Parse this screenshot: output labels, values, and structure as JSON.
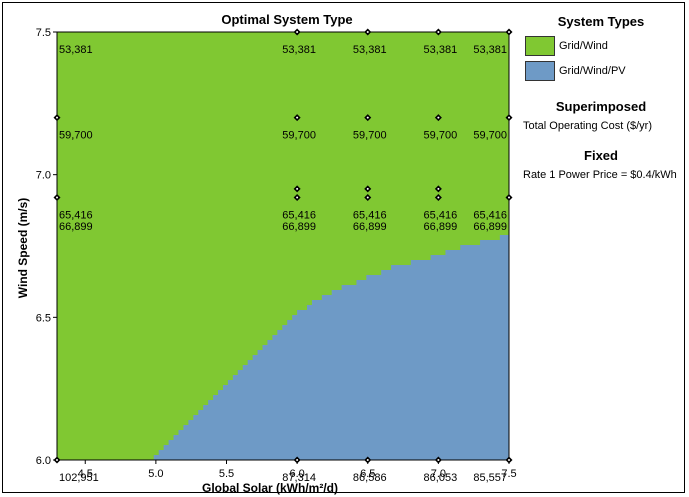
{
  "chart_data": {
    "type": "heatmap",
    "title": "Optimal System Type",
    "xlabel": "Global Solar (kWh/m²/d)",
    "ylabel": "Wind Speed (m/s)",
    "xlim": [
      4.3,
      7.5
    ],
    "ylim": [
      6.0,
      7.5
    ],
    "x_ticks": [
      "4.5",
      "5.0",
      "5.5",
      "6.0",
      "6.5",
      "7.0",
      "7.5"
    ],
    "y_ticks": [
      "6.0",
      "6.5",
      "7.0",
      "7.5"
    ],
    "regions": [
      {
        "name": "Grid/Wind",
        "color": "#80c832"
      },
      {
        "name": "Grid/Wind/PV",
        "color": "#6e9ac6"
      }
    ],
    "boundary": [
      [
        4.95,
        6.0
      ],
      [
        5.2,
        6.12
      ],
      [
        5.45,
        6.25
      ],
      [
        5.7,
        6.37
      ],
      [
        5.95,
        6.5
      ],
      [
        6.2,
        6.58
      ],
      [
        6.45,
        6.63
      ],
      [
        6.7,
        6.68
      ],
      [
        6.95,
        6.71
      ],
      [
        7.2,
        6.75
      ],
      [
        7.5,
        6.79
      ]
    ],
    "markers": [
      [
        6.0,
        7.5
      ],
      [
        6.5,
        7.5
      ],
      [
        7.0,
        7.5
      ],
      [
        7.5,
        7.5
      ],
      [
        4.3,
        7.2
      ],
      [
        6.0,
        7.2
      ],
      [
        6.5,
        7.2
      ],
      [
        7.0,
        7.2
      ],
      [
        7.5,
        7.2
      ],
      [
        6.0,
        6.95
      ],
      [
        6.5,
        6.95
      ],
      [
        7.0,
        6.95
      ],
      [
        4.3,
        6.92
      ],
      [
        6.0,
        6.92
      ],
      [
        6.5,
        6.92
      ],
      [
        7.0,
        6.92
      ],
      [
        7.5,
        6.92
      ],
      [
        4.3,
        6.0
      ],
      [
        6.0,
        6.0
      ],
      [
        6.5,
        6.0
      ],
      [
        7.0,
        6.0
      ],
      [
        7.5,
        6.0
      ]
    ],
    "cost_labels": [
      {
        "x": 4.3,
        "y": 7.5,
        "text": "53,381"
      },
      {
        "x": 6.0,
        "y": 7.5,
        "text": "53,381"
      },
      {
        "x": 6.5,
        "y": 7.5,
        "text": "53,381"
      },
      {
        "x": 7.0,
        "y": 7.5,
        "text": "53,381"
      },
      {
        "x": 7.5,
        "y": 7.5,
        "text": "53,381"
      },
      {
        "x": 4.3,
        "y": 7.2,
        "text": "59,700"
      },
      {
        "x": 6.0,
        "y": 7.2,
        "text": "59,700"
      },
      {
        "x": 6.5,
        "y": 7.2,
        "text": "59,700"
      },
      {
        "x": 7.0,
        "y": 7.2,
        "text": "59,700"
      },
      {
        "x": 7.5,
        "y": 7.2,
        "text": "59,700"
      },
      {
        "x": 4.3,
        "y": 6.92,
        "text": "65,416"
      },
      {
        "x": 6.0,
        "y": 6.92,
        "text": "65,416"
      },
      {
        "x": 6.5,
        "y": 6.92,
        "text": "65,416"
      },
      {
        "x": 7.0,
        "y": 6.92,
        "text": "65,416"
      },
      {
        "x": 7.5,
        "y": 6.92,
        "text": "65,416"
      },
      {
        "x": 4.3,
        "y": 6.88,
        "text": "66,899"
      },
      {
        "x": 6.0,
        "y": 6.88,
        "text": "66,899"
      },
      {
        "x": 6.5,
        "y": 6.88,
        "text": "66,899"
      },
      {
        "x": 7.0,
        "y": 6.88,
        "text": "66,899"
      },
      {
        "x": 7.5,
        "y": 6.88,
        "text": "66,899"
      },
      {
        "x": 4.3,
        "y": 6.0,
        "text": "102,951"
      },
      {
        "x": 6.0,
        "y": 6.0,
        "text": "87,314"
      },
      {
        "x": 6.5,
        "y": 6.0,
        "text": "86,586"
      },
      {
        "x": 7.0,
        "y": 6.0,
        "text": "86,053"
      },
      {
        "x": 7.5,
        "y": 6.0,
        "text": "85,557"
      }
    ]
  },
  "legend": {
    "title": "System Types",
    "items": [
      {
        "label": "Grid/Wind",
        "color": "#80c832"
      },
      {
        "label": "Grid/Wind/PV",
        "color": "#6e9ac6"
      }
    ],
    "superimposed_title": "Superimposed",
    "superimposed_text": "Total Operating Cost ($/yr)",
    "fixed_title": "Fixed",
    "fixed_text": "Rate 1 Power Price = $0.4/kWh"
  }
}
